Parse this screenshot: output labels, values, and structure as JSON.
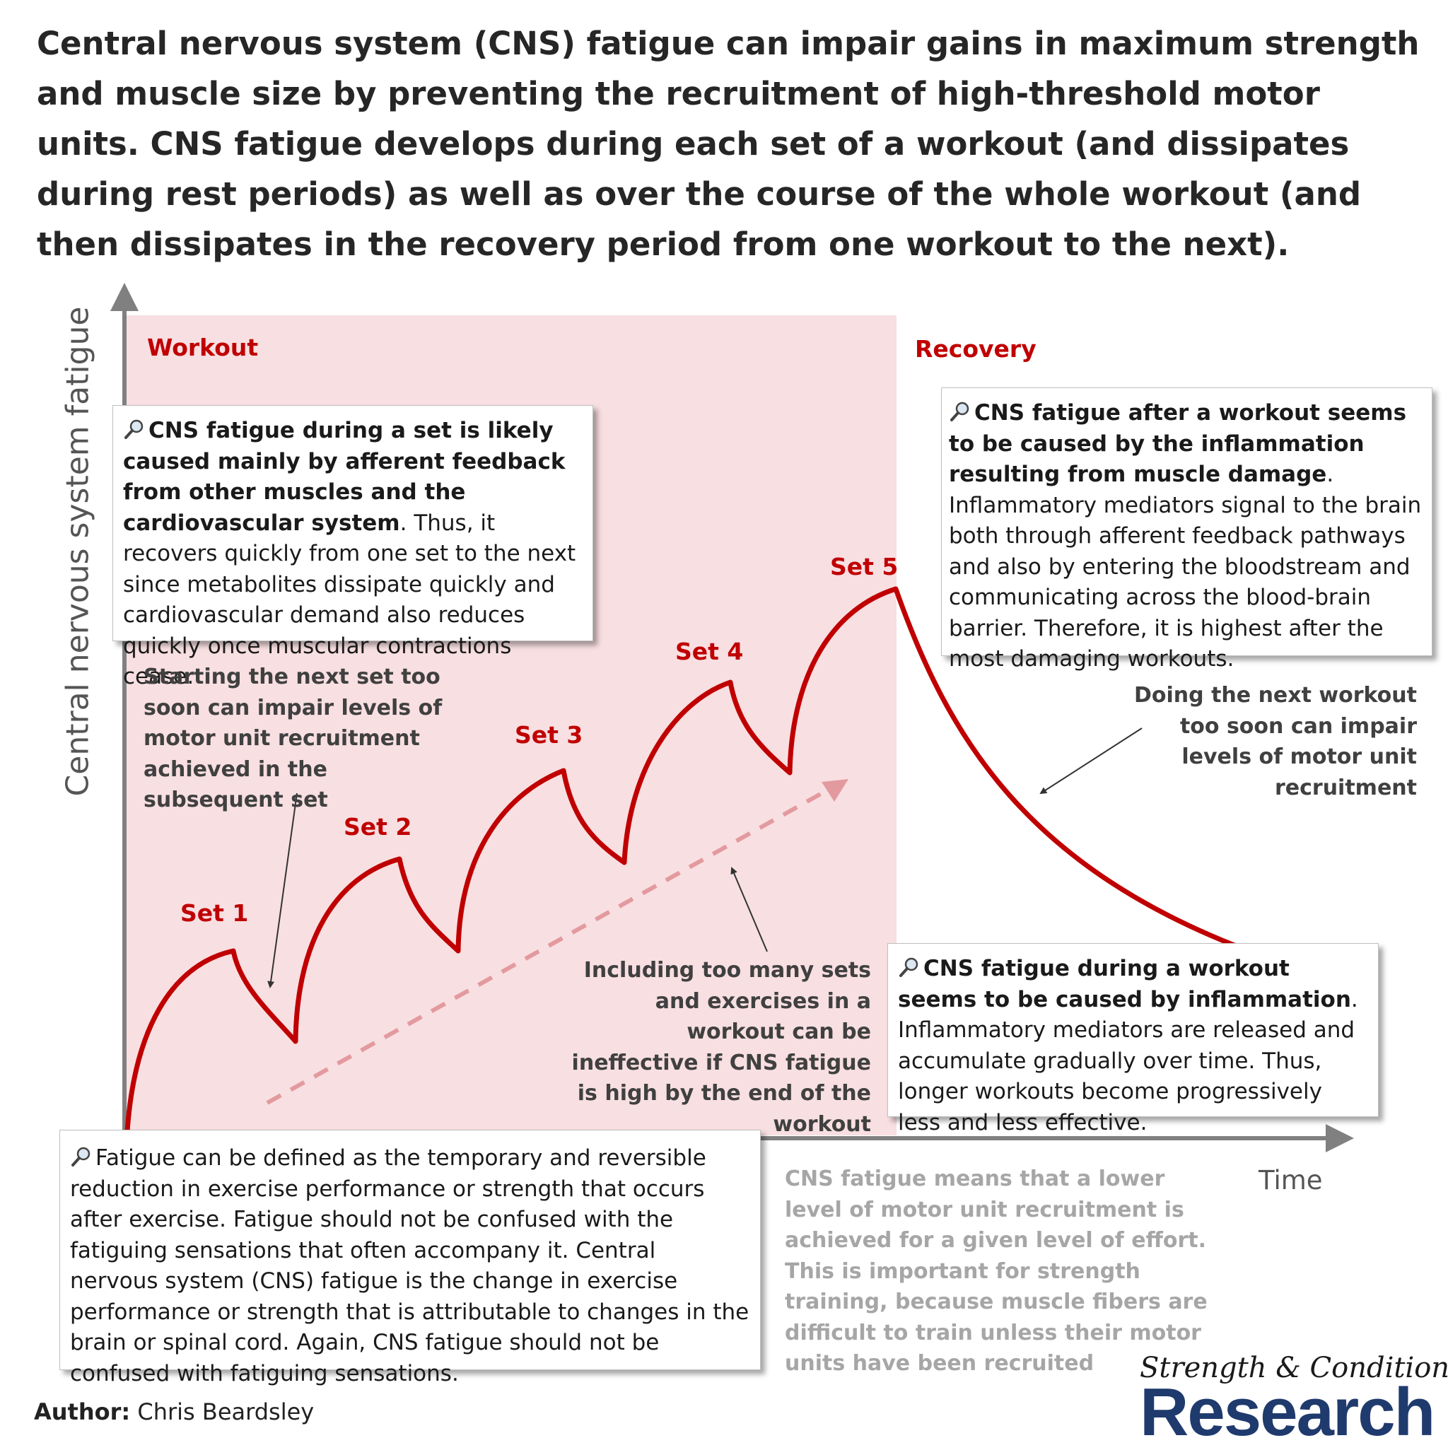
{
  "headline": "Central nervous system (CNS) fatigue can impair gains in maximum strength and muscle size by preventing the recruitment of high-threshold motor units. CNS fatigue develops during each set of a workout (and dissipates during rest periods) as well as over the course of the whole workout (and then dissipates in the recovery period from one workout to the next).",
  "axes": {
    "y_label": "Central nervous system fatigue",
    "x_label": "Time"
  },
  "phases": {
    "workout": "Workout",
    "recovery": "Recovery"
  },
  "sets": [
    "Set 1",
    "Set 2",
    "Set 3",
    "Set 4",
    "Set 5"
  ],
  "colors": {
    "curve": "#c00000",
    "workout_shading": "#f8dfe2",
    "trend_arrow": "#e39a9e",
    "axis": "#808080",
    "logo_blue": "#1f3a6d"
  },
  "icons": {
    "callout_icon": "magnifying-glass-icon"
  },
  "boxes": {
    "set_fatigue": {
      "bold": "CNS fatigue during a set is likely caused mainly by afferent feedback from other muscles and the cardiovascular system",
      "text": ". Thus, it recovers quickly from one set to the next since metabolites dissipate quickly and cardiovascular demand also reduces quickly once muscular contractions cease."
    },
    "after_workout": {
      "bold": "CNS fatigue after a workout seems to be caused by the inflammation resulting from muscle damage",
      "text": ". Inflammatory mediators signal to the brain both through afferent feedback pathways and also by entering the bloodstream and communicating across the blood-brain barrier. Therefore, it is highest after the most damaging workouts."
    },
    "during_workout": {
      "bold": "CNS fatigue during a workout seems to be caused by inflammation",
      "text": ". Inflammatory mediators are released and accumulate gradually over time. Thus, longer workouts become progressively less and less effective."
    },
    "definition": {
      "text": "Fatigue can be defined as the temporary and reversible reduction in exercise performance or strength that occurs after exercise. Fatigue should not be confused with the fatiguing sensations that often accompany it. Central nervous system (CNS) fatigue is the change in exercise performance or strength that is attributable to changes in the brain or spinal cord. Again, CNS fatigue should not be confused with fatiguing sensations."
    }
  },
  "notes": {
    "next_set": "Starting the next set too soon can impair levels of motor unit recruitment achieved in the subsequent set",
    "too_many_sets": "Including too many sets and exercises in a workout can be ineffective if CNS fatigue is high by the end of the workout",
    "next_workout": "Doing the next workout too soon can impair levels of motor unit recruitment",
    "recruitment": "CNS fatigue means that a lower level of motor unit recruitment is achieved for a given level of effort. This is important for strength training, because muscle fibers are difficult to train unless their motor units have been recruited"
  },
  "author": {
    "label": "Author:",
    "name": "Chris Beardsley"
  },
  "logo": {
    "script": "Strength & Conditioning",
    "main": "Research"
  }
}
